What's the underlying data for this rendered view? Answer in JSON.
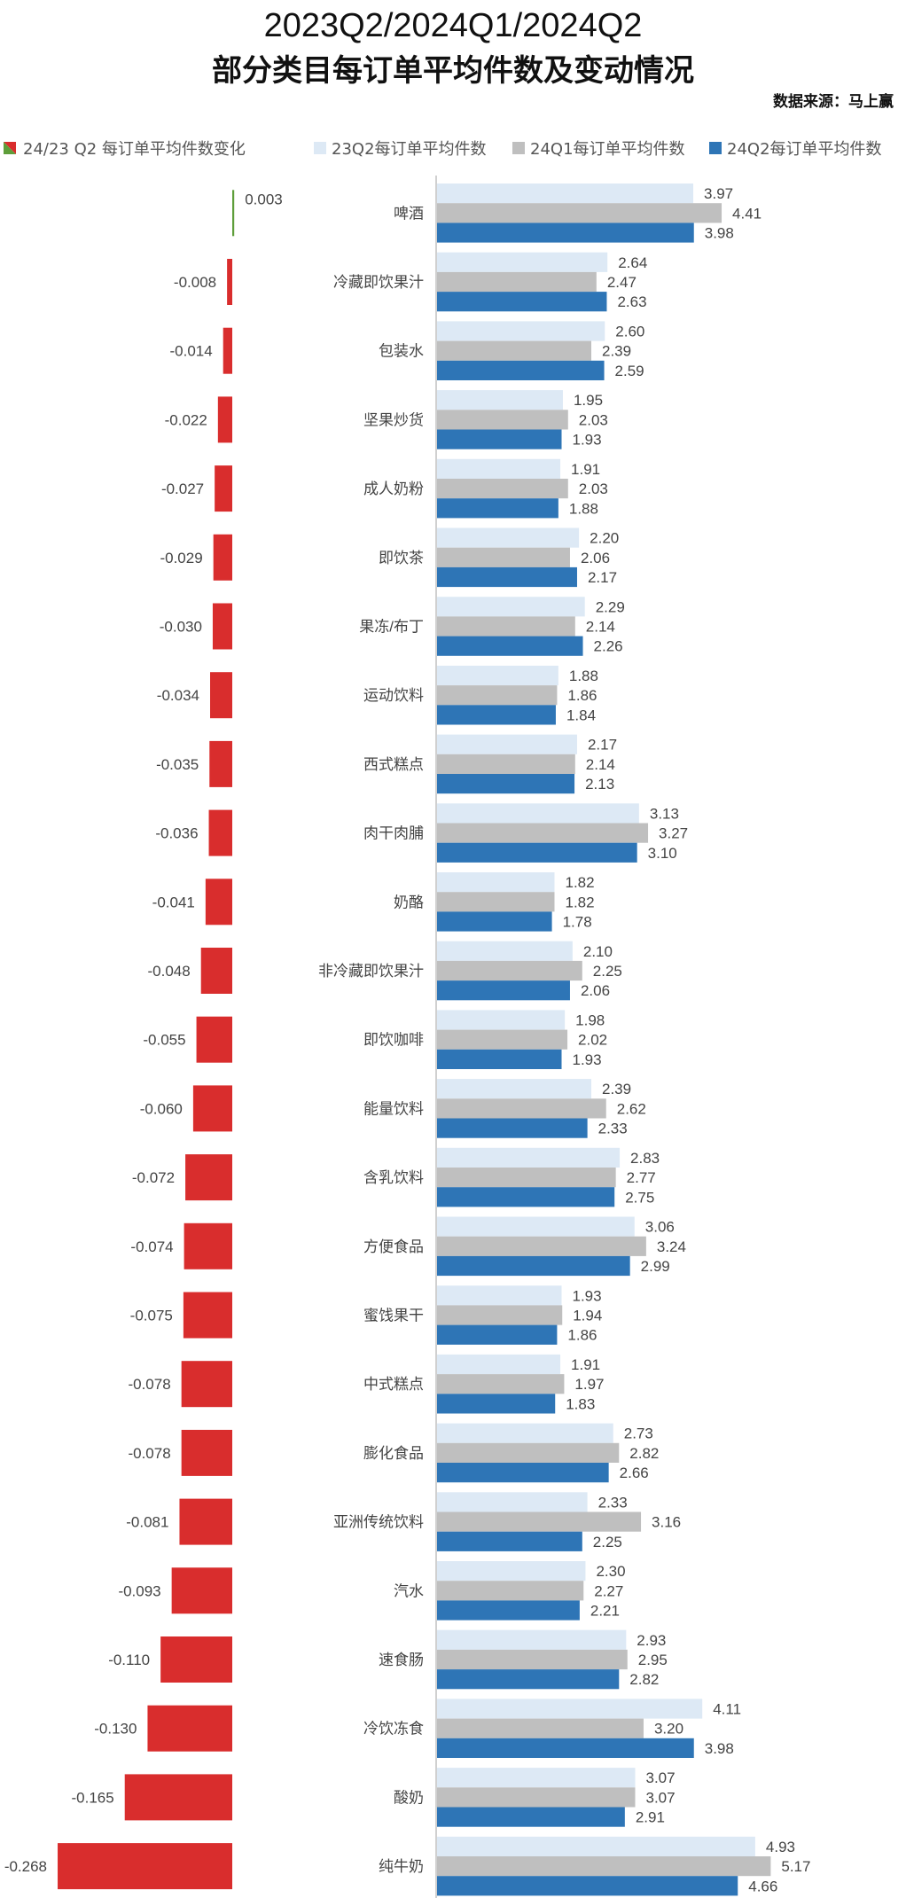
{
  "title_line1": "2023Q2/2024Q1/2024Q2",
  "title_line2": "部分类目每订单平均件数及变动情况",
  "source": "数据来源：马上赢",
  "colors": {
    "s23q2": "#dde9f5",
    "s24q1": "#bfbfbf",
    "s24q2": "#2e75b6",
    "neg": "#d92d2d",
    "pos": "#5e9e3a"
  },
  "chart_data": [
    {
      "type": "bar",
      "orientation": "horizontal",
      "legend": "24/23 Q2 每订单平均件数变化",
      "legend_position": "top-left",
      "categories": [
        "啤酒",
        "冷藏即饮果汁",
        "包装水",
        "坚果炒货",
        "成人奶粉",
        "即饮茶",
        "果冻/布丁",
        "运动饮料",
        "西式糕点",
        "肉干肉脯",
        "奶酪",
        "非冷藏即饮果汁",
        "即饮咖啡",
        "能量饮料",
        "含乳饮料",
        "方便食品",
        "蜜饯果干",
        "中式糕点",
        "膨化食品",
        "亚洲传统饮料",
        "汽水",
        "速食肠",
        "冷饮冻食",
        "酸奶",
        "纯牛奶"
      ],
      "values": [
        0.003,
        -0.008,
        -0.014,
        -0.022,
        -0.027,
        -0.029,
        -0.03,
        -0.034,
        -0.035,
        -0.036,
        -0.041,
        -0.048,
        -0.055,
        -0.06,
        -0.072,
        -0.074,
        -0.075,
        -0.078,
        -0.078,
        -0.081,
        -0.093,
        -0.11,
        -0.13,
        -0.165,
        -0.268
      ],
      "labels": [
        "0.003",
        "-0.008",
        "-0.014",
        "-0.022",
        "-0.027",
        "-0.029",
        "-0.030",
        "-0.034",
        "-0.035",
        "-0.036",
        "-0.041",
        "-0.048",
        "-0.055",
        "-0.060",
        "-0.072",
        "-0.074",
        "-0.075",
        "-0.078",
        "-0.078",
        "-0.081",
        "-0.093",
        "-0.110",
        "-0.130",
        "-0.165",
        "-0.268"
      ],
      "xlim": [
        -0.27,
        0.01
      ]
    },
    {
      "type": "bar",
      "orientation": "horizontal",
      "legend_position": "top",
      "series": [
        {
          "name": "23Q2每订单平均件数",
          "values": [
            "3.97",
            "2.64",
            "2.60",
            "1.95",
            "1.91",
            "2.20",
            "2.29",
            "1.88",
            "2.17",
            "3.13",
            "1.82",
            "2.10",
            "1.98",
            "2.39",
            "2.83",
            "3.06",
            "1.93",
            "1.91",
            "2.73",
            "2.33",
            "2.30",
            "2.93",
            "4.11",
            "3.07",
            "4.93"
          ]
        },
        {
          "name": "24Q1每订单平均件数",
          "values": [
            "4.41",
            "2.47",
            "2.39",
            "2.03",
            "2.03",
            "2.06",
            "2.14",
            "1.86",
            "2.14",
            "3.27",
            "1.82",
            "2.25",
            "2.02",
            "2.62",
            "2.77",
            "3.24",
            "1.94",
            "1.97",
            "2.82",
            "3.16",
            "2.27",
            "2.95",
            "3.20",
            "3.07",
            "5.17"
          ]
        },
        {
          "name": "24Q2每订单平均件数",
          "values": [
            "3.98",
            "2.63",
            "2.59",
            "1.93",
            "1.88",
            "2.17",
            "2.26",
            "1.84",
            "2.13",
            "3.10",
            "1.78",
            "2.06",
            "1.93",
            "2.33",
            "2.75",
            "2.99",
            "1.86",
            "1.83",
            "2.66",
            "2.25",
            "2.21",
            "2.82",
            "3.98",
            "2.91",
            "4.66"
          ]
        }
      ],
      "xlim": [
        0,
        5.5
      ]
    }
  ]
}
